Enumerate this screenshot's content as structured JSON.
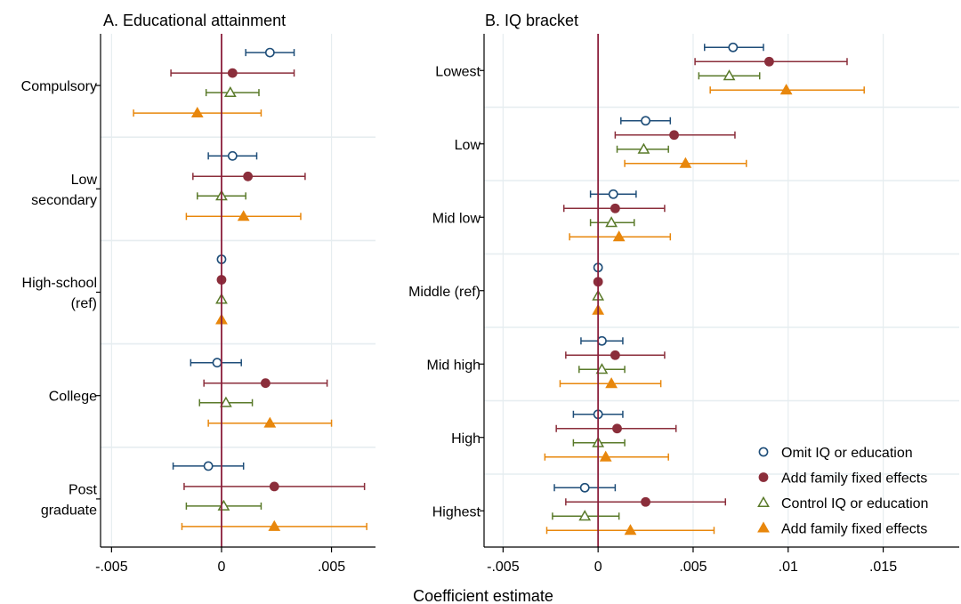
{
  "common": {
    "xlabel": "Coefficient estimate"
  },
  "legend": {
    "placement": "bottom-right",
    "items": [
      {
        "label": "Omit IQ or education",
        "marker": "circle-hollow",
        "color": "#1f4e79"
      },
      {
        "label": "Add family fixed effects",
        "marker": "circle-filled",
        "color": "#8b2e3b"
      },
      {
        "label": "Control IQ or education",
        "marker": "triangle-hollow",
        "color": "#5a7a2a"
      },
      {
        "label": "Add family fixed effects",
        "marker": "triangle-filled",
        "color": "#e8870c"
      }
    ]
  },
  "chart_data": [
    {
      "type": "coefficient-plot",
      "title": "A. Educational attainment",
      "xlim": [
        -0.0055,
        0.007
      ],
      "xticks": [
        {
          "value": -0.005,
          "label": "-.005"
        },
        {
          "value": 0,
          "label": "0"
        },
        {
          "value": 0.005,
          "label": ".005"
        }
      ],
      "reference_line": 0,
      "grid": true,
      "categories": [
        {
          "label": [
            "Compulsory"
          ]
        },
        {
          "label": [
            "Low",
            "secondary"
          ]
        },
        {
          "label": [
            "High-school",
            "(ref)"
          ]
        },
        {
          "label": [
            "College"
          ]
        },
        {
          "label": [
            "Post",
            "graduate"
          ]
        }
      ],
      "series": [
        {
          "name": "Omit IQ or education",
          "color": "#1f4e79",
          "marker": "circle-hollow",
          "points": [
            [
              0.0022,
              0.0011,
              0.0033
            ],
            [
              0.0005,
              -0.0006,
              0.0016
            ],
            [
              0,
              0,
              0
            ],
            [
              -0.0002,
              -0.0014,
              0.0009
            ],
            [
              -0.0006,
              -0.0022,
              0.001
            ]
          ]
        },
        {
          "name": "Add family fixed effects",
          "color": "#8b2e3b",
          "marker": "circle-filled",
          "points": [
            [
              0.0005,
              -0.0023,
              0.0033
            ],
            [
              0.0012,
              -0.0013,
              0.0038
            ],
            [
              0,
              0,
              0
            ],
            [
              0.002,
              -0.0008,
              0.0048
            ],
            [
              0.0024,
              -0.0017,
              0.0065
            ]
          ]
        },
        {
          "name": "Control IQ or education",
          "color": "#5a7a2a",
          "marker": "triangle-hollow",
          "points": [
            [
              0.0004,
              -0.0007,
              0.0017
            ],
            [
              0.0,
              -0.0011,
              0.0011
            ],
            [
              0,
              0,
              0
            ],
            [
              0.0002,
              -0.001,
              0.0014
            ],
            [
              0.0001,
              -0.0016,
              0.0018
            ]
          ]
        },
        {
          "name": "Add family fixed effects",
          "color": "#e8870c",
          "marker": "triangle-filled",
          "points": [
            [
              -0.0011,
              -0.004,
              0.0018
            ],
            [
              0.001,
              -0.0016,
              0.0036
            ],
            [
              0,
              0,
              0
            ],
            [
              0.0022,
              -0.0006,
              0.005
            ],
            [
              0.0024,
              -0.0018,
              0.0066
            ]
          ]
        }
      ]
    },
    {
      "type": "coefficient-plot",
      "title": "B. IQ bracket",
      "xlim": [
        -0.006,
        0.019
      ],
      "xticks": [
        {
          "value": -0.005,
          "label": "-.005"
        },
        {
          "value": 0,
          "label": "0"
        },
        {
          "value": 0.005,
          "label": ".005"
        },
        {
          "value": 0.01,
          "label": ".01"
        },
        {
          "value": 0.015,
          "label": ".015"
        }
      ],
      "reference_line": 0,
      "grid": true,
      "categories": [
        {
          "label": [
            "Lowest"
          ]
        },
        {
          "label": [
            "Low"
          ]
        },
        {
          "label": [
            "Mid low"
          ]
        },
        {
          "label": [
            "Middle (ref)"
          ]
        },
        {
          "label": [
            "Mid high"
          ]
        },
        {
          "label": [
            "High"
          ]
        },
        {
          "label": [
            "Highest"
          ]
        }
      ],
      "series": [
        {
          "name": "Omit IQ or education",
          "color": "#1f4e79",
          "marker": "circle-hollow",
          "points": [
            [
              0.0071,
              0.0056,
              0.0087
            ],
            [
              0.0025,
              0.0012,
              0.0038
            ],
            [
              0.0008,
              -0.0004,
              0.002
            ],
            [
              0,
              0,
              0
            ],
            [
              0.0002,
              -0.0009,
              0.0013
            ],
            [
              0.0,
              -0.0013,
              0.0013
            ],
            [
              -0.0007,
              -0.0023,
              0.0009
            ]
          ]
        },
        {
          "name": "Add family fixed effects",
          "color": "#8b2e3b",
          "marker": "circle-filled",
          "points": [
            [
              0.009,
              0.0051,
              0.0131
            ],
            [
              0.004,
              0.0009,
              0.0072
            ],
            [
              0.0009,
              -0.0018,
              0.0035
            ],
            [
              0,
              0,
              0
            ],
            [
              0.0009,
              -0.0017,
              0.0035
            ],
            [
              0.001,
              -0.0022,
              0.0041
            ],
            [
              0.0025,
              -0.0017,
              0.0067
            ]
          ]
        },
        {
          "name": "Control IQ or education",
          "color": "#5a7a2a",
          "marker": "triangle-hollow",
          "points": [
            [
              0.0069,
              0.0053,
              0.0085
            ],
            [
              0.0024,
              0.001,
              0.0037
            ],
            [
              0.0007,
              -0.0004,
              0.0019
            ],
            [
              0,
              0,
              0
            ],
            [
              0.0002,
              -0.001,
              0.0014
            ],
            [
              0.0,
              -0.0013,
              0.0014
            ],
            [
              -0.0007,
              -0.0024,
              0.0011
            ]
          ]
        },
        {
          "name": "Add family fixed effects",
          "color": "#e8870c",
          "marker": "triangle-filled",
          "points": [
            [
              0.0099,
              0.0059,
              0.014
            ],
            [
              0.0046,
              0.0014,
              0.0078
            ],
            [
              0.0011,
              -0.0015,
              0.0038
            ],
            [
              0,
              0,
              0
            ],
            [
              0.0007,
              -0.002,
              0.0033
            ],
            [
              0.0004,
              -0.0028,
              0.0037
            ],
            [
              0.0017,
              -0.0027,
              0.0061
            ]
          ]
        }
      ]
    }
  ]
}
